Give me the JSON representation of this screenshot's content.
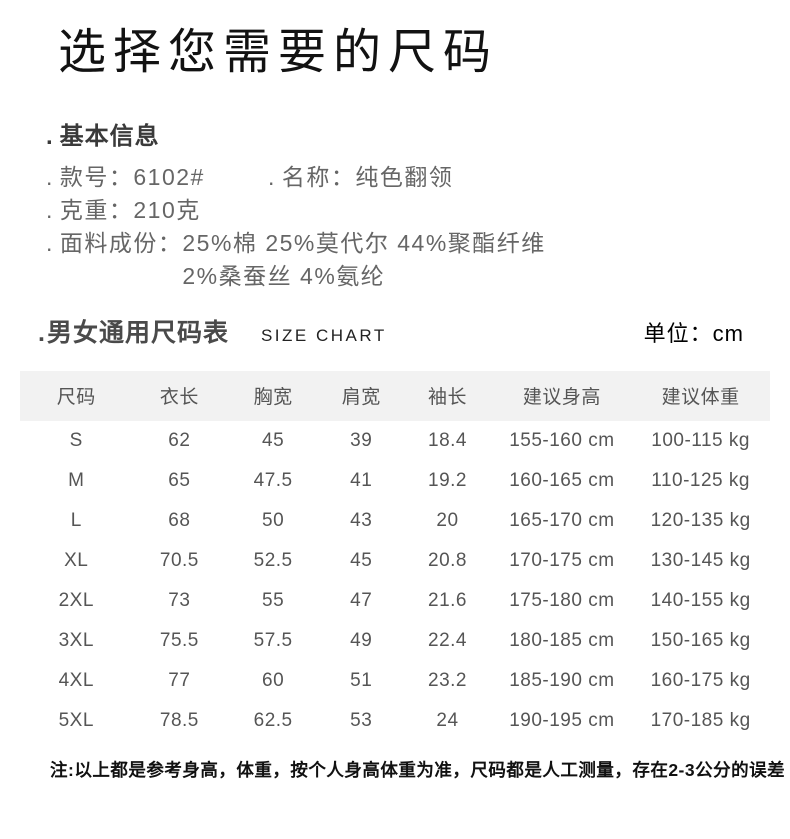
{
  "page": {
    "title": "选择您需要的尺码"
  },
  "bullets": {
    "dot": "."
  },
  "info": {
    "section_title": "基本信息",
    "style_no_label": "款号：",
    "style_no_value": "6102#",
    "name_label": "名称：",
    "name_value": "纯色翻领",
    "weight_label": "克重：",
    "weight_value": "210克",
    "fabric_label": "面料成份：",
    "fabric_value_line1": "25%棉 25%莫代尔 44%聚酯纤维",
    "fabric_value_line2": "2%桑蚕丝 4%氨纶"
  },
  "size_chart_heading": {
    "cn": "男女通用尺码表",
    "en": "SIZE CHART",
    "unit": "单位：cm"
  },
  "chart_data": {
    "type": "table",
    "title": "男女通用尺码表 SIZE CHART",
    "unit": "cm",
    "columns": [
      "尺码",
      "衣长",
      "胸宽",
      "肩宽",
      "袖长",
      "建议身高",
      "建议体重"
    ],
    "rows": [
      [
        "S",
        "62",
        "45",
        "39",
        "18.4",
        "155-160 cm",
        "100-115 kg"
      ],
      [
        "M",
        "65",
        "47.5",
        "41",
        "19.2",
        "160-165 cm",
        "110-125 kg"
      ],
      [
        "L",
        "68",
        "50",
        "43",
        "20",
        "165-170 cm",
        "120-135 kg"
      ],
      [
        "XL",
        "70.5",
        "52.5",
        "45",
        "20.8",
        "170-175 cm",
        "130-145 kg"
      ],
      [
        "2XL",
        "73",
        "55",
        "47",
        "21.6",
        "175-180 cm",
        "140-155 kg"
      ],
      [
        "3XL",
        "75.5",
        "57.5",
        "49",
        "22.4",
        "180-185 cm",
        "150-165 kg"
      ],
      [
        "4XL",
        "77",
        "60",
        "51",
        "23.2",
        "185-190 cm",
        "160-175 kg"
      ],
      [
        "5XL",
        "78.5",
        "62.5",
        "53",
        "24",
        "190-195 cm",
        "170-185 kg"
      ]
    ],
    "header_background": "#f2f2f2",
    "text_color": "#555555"
  },
  "footer": {
    "note": "注:以上都是参考身高，体重，按个人身高体重为准，尺码都是人工测量，存在2-3公分的误差"
  }
}
